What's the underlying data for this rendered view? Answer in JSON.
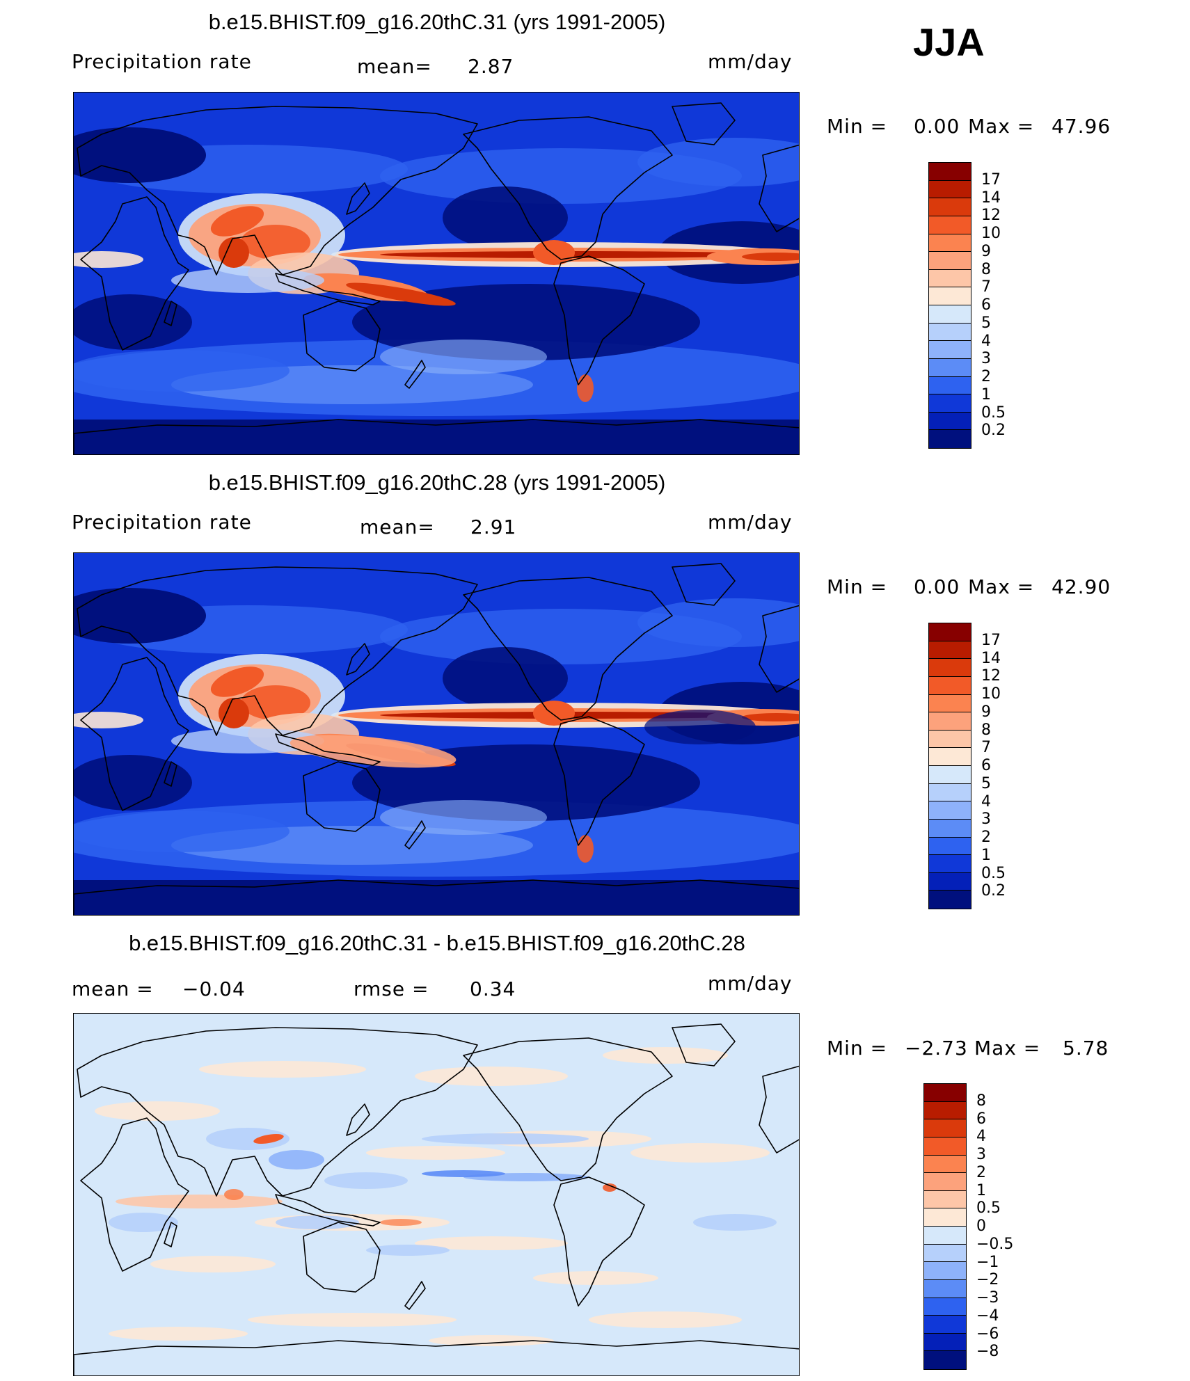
{
  "season": "JJA",
  "panels": [
    {
      "title": "b.e15.BHIST.f09_g16.20thC.31 (yrs 1991-2005)",
      "variable": "Precipitation  rate",
      "stat_label": "mean=",
      "stat_value": "2.87",
      "units": "mm/day",
      "min_label": "Min  =",
      "min_value": "0.00",
      "max_label": "Max  =",
      "max_value": "47.96",
      "map_kind": "abs",
      "levels": [
        "17",
        "14",
        "12",
        "10",
        "9",
        "8",
        "7",
        "6",
        "5",
        "4",
        "3",
        "2",
        "1",
        "0.5",
        "0.2"
      ],
      "colors": [
        "#870000",
        "#b81c00",
        "#da3a0c",
        "#f25a28",
        "#fb8350",
        "#fca27c",
        "#fdc6a8",
        "#fde8d6",
        "#d6e8fa",
        "#b6d0fb",
        "#8eb2fa",
        "#5c8cf6",
        "#2e62f0",
        "#1038d8",
        "#0420b8",
        "#00107e"
      ]
    },
    {
      "title": "b.e15.BHIST.f09_g16.20thC.28 (yrs 1991-2005)",
      "variable": "Precipitation  rate",
      "stat_label": "mean=",
      "stat_value": "2.91",
      "units": "mm/day",
      "min_label": "Min  =",
      "min_value": "0.00",
      "max_label": "Max  =",
      "max_value": "42.90",
      "map_kind": "abs",
      "levels": [
        "17",
        "14",
        "12",
        "10",
        "9",
        "8",
        "7",
        "6",
        "5",
        "4",
        "3",
        "2",
        "1",
        "0.5",
        "0.2"
      ],
      "colors": [
        "#870000",
        "#b81c00",
        "#da3a0c",
        "#f25a28",
        "#fb8350",
        "#fca27c",
        "#fdc6a8",
        "#fde8d6",
        "#d6e8fa",
        "#b6d0fb",
        "#8eb2fa",
        "#5c8cf6",
        "#2e62f0",
        "#1038d8",
        "#0420b8",
        "#00107e"
      ]
    },
    {
      "title": "b.e15.BHIST.f09_g16.20thC.31 - b.e15.BHIST.f09_g16.20thC.28",
      "stat_label": "mean  =",
      "stat_value": "−0.04",
      "rmse_label": "rmse  =",
      "rmse_value": "0.34",
      "units": "mm/day",
      "min_label": "Min  =",
      "min_value": "−2.73",
      "max_label": "Max  =",
      "max_value": "5.78",
      "map_kind": "diff",
      "levels": [
        "8",
        "6",
        "4",
        "3",
        "2",
        "1",
        "0.5",
        "0",
        "−0.5",
        "−1",
        "−2",
        "−3",
        "−4",
        "−6",
        "−8"
      ],
      "colors": [
        "#870000",
        "#b81c00",
        "#da3a0c",
        "#f25a28",
        "#fb8350",
        "#fca27c",
        "#fdc6a8",
        "#fde8d6",
        "#d6e8fa",
        "#b6d0fb",
        "#8eb2fa",
        "#5c8cf6",
        "#2e62f0",
        "#1038d8",
        "#0420b8",
        "#00107e"
      ]
    }
  ]
}
